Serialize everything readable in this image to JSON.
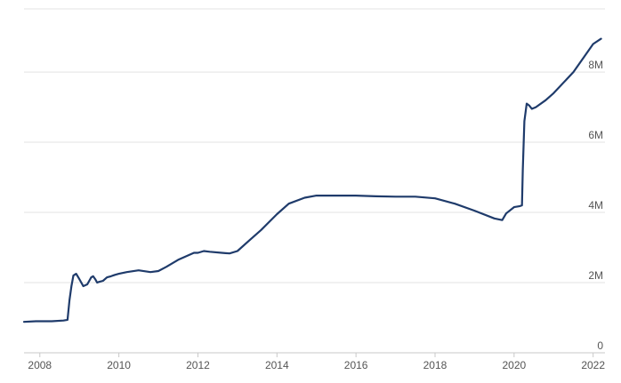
{
  "chart_data": {
    "type": "line",
    "title": "",
    "xlabel": "",
    "ylabel": "",
    "xlim": [
      2007.6,
      2022.3
    ],
    "ylim": [
      0,
      9.8
    ],
    "grid": true,
    "legend": "none",
    "color": "#1f3b6b",
    "x_ticks": [
      {
        "value": 2008,
        "label": "2008"
      },
      {
        "value": 2010,
        "label": "2010"
      },
      {
        "value": 2012,
        "label": "2012"
      },
      {
        "value": 2014,
        "label": "2014"
      },
      {
        "value": 2016,
        "label": "2016"
      },
      {
        "value": 2018,
        "label": "2018"
      },
      {
        "value": 2020,
        "label": "2020"
      },
      {
        "value": 2022,
        "label": "2022"
      }
    ],
    "y_ticks": [
      {
        "value": 0,
        "label": "0"
      },
      {
        "value": 2,
        "label": "2M"
      },
      {
        "value": 4,
        "label": "4M"
      },
      {
        "value": 6,
        "label": "6M"
      },
      {
        "value": 8,
        "label": "8M"
      }
    ],
    "series": [
      {
        "x": [
          2007.6,
          2007.9,
          2008.3,
          2008.6,
          2008.7,
          2008.75,
          2008.8,
          2008.85,
          2008.92,
          2009.0,
          2009.1,
          2009.2,
          2009.3,
          2009.35,
          2009.4,
          2009.45,
          2009.5,
          2009.6,
          2009.7,
          2009.8,
          2009.9,
          2010.0,
          2010.2,
          2010.5,
          2010.8,
          2011.0,
          2011.2,
          2011.5,
          2011.9,
          2012.0,
          2012.15,
          2012.3,
          2012.6,
          2012.8,
          2013.0,
          2013.3,
          2013.6,
          2014.0,
          2014.3,
          2014.7,
          2015.0,
          2015.5,
          2016.0,
          2016.5,
          2017.0,
          2017.5,
          2018.0,
          2018.5,
          2019.0,
          2019.5,
          2019.7,
          2019.8,
          2020.0,
          2020.15,
          2020.2,
          2020.22,
          2020.26,
          2020.32,
          2020.38,
          2020.45,
          2020.55,
          2020.8,
          2021.0,
          2021.5,
          2022.0,
          2022.2
        ],
        "values": [
          0.88,
          0.9,
          0.9,
          0.92,
          0.94,
          1.5,
          1.9,
          2.2,
          2.25,
          2.1,
          1.9,
          1.95,
          2.15,
          2.18,
          2.1,
          2.0,
          2.02,
          2.05,
          2.15,
          2.18,
          2.22,
          2.25,
          2.3,
          2.35,
          2.3,
          2.33,
          2.45,
          2.65,
          2.85,
          2.85,
          2.9,
          2.88,
          2.85,
          2.83,
          2.9,
          3.2,
          3.5,
          3.95,
          4.25,
          4.42,
          4.48,
          4.48,
          4.48,
          4.46,
          4.45,
          4.45,
          4.4,
          4.25,
          4.05,
          3.83,
          3.78,
          3.97,
          4.15,
          4.18,
          4.2,
          5.2,
          6.6,
          7.1,
          7.05,
          6.95,
          7.0,
          7.2,
          7.4,
          8.0,
          8.8,
          8.95
        ]
      }
    ]
  }
}
